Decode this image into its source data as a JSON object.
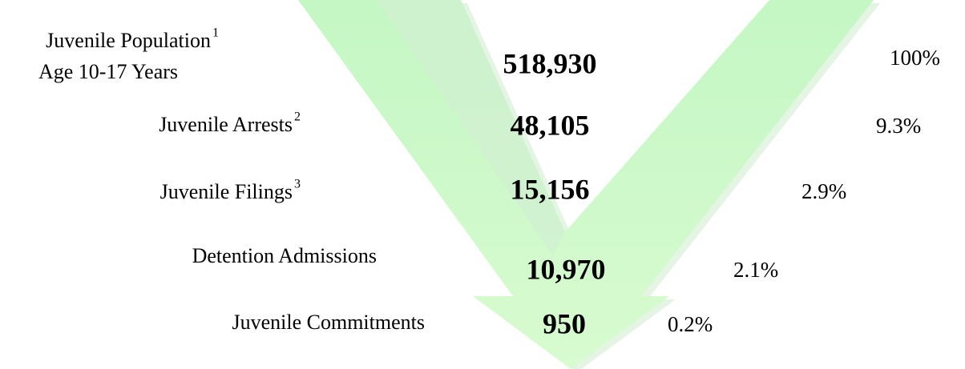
{
  "rows": [
    {
      "label": "Juvenile Population",
      "note": "1",
      "sublabel": "Age 10-17 Years",
      "count": "518,930",
      "percent": "100%"
    },
    {
      "label": "Juvenile Arrests",
      "note": "2",
      "count": "48,105",
      "percent": "9.3%"
    },
    {
      "label": "Juvenile Filings",
      "note": "3",
      "count": "15,156",
      "percent": "2.9%"
    },
    {
      "label": "Detention Admissions",
      "count": "10,970",
      "percent": "2.1%"
    },
    {
      "label": "Juvenile Commitments",
      "count": "950",
      "percent": "0.2%"
    }
  ]
}
